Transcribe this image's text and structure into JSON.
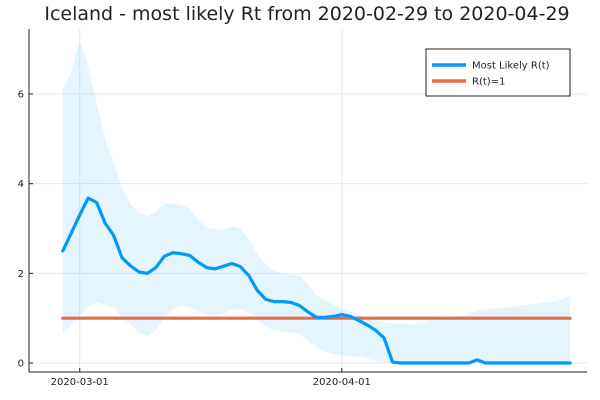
{
  "chart_data": {
    "type": "line",
    "title": "Iceland - most likely Rt from 2020-02-29 to 2020-04-29",
    "xlabel": "",
    "ylabel": "",
    "x_start": "2020-02-28",
    "x_end": "2020-04-29",
    "x_range": [
      "2020-02-24",
      "2020-04-30"
    ],
    "ylim": [
      -0.2,
      7.45
    ],
    "x_ticks": [
      {
        "date": "2020-03-01",
        "label": "2020-03-01"
      },
      {
        "date": "2020-04-01",
        "label": "2020-04-01"
      }
    ],
    "y_ticks": [
      {
        "value": 0,
        "label": "0"
      },
      {
        "value": 2,
        "label": "2"
      },
      {
        "value": 4,
        "label": "4"
      },
      {
        "value": 6,
        "label": "6"
      }
    ],
    "grid": true,
    "legend_position": "top-right",
    "series": [
      {
        "name": "Most Likely R(t)",
        "color": "#009af9",
        "values": [
          2.5,
          2.9,
          3.3,
          3.68,
          3.58,
          3.12,
          2.85,
          2.35,
          2.17,
          2.03,
          2.0,
          2.13,
          2.38,
          2.46,
          2.44,
          2.4,
          2.25,
          2.13,
          2.1,
          2.16,
          2.22,
          2.15,
          1.95,
          1.62,
          1.42,
          1.37,
          1.37,
          1.35,
          1.28,
          1.14,
          1.02,
          1.02,
          1.04,
          1.08,
          1.04,
          0.95,
          0.85,
          0.73,
          0.56,
          0.02,
          0.0,
          0.0,
          0.0,
          0.0,
          0.0,
          0.0,
          0.0,
          0.0,
          0.0,
          0.07,
          0.0,
          0.0,
          0.0,
          0.0,
          0.0,
          0.0,
          0.0,
          0.0,
          0.0,
          0.0,
          0.0
        ]
      },
      {
        "name": "R(t)=1",
        "color": "#e26f46",
        "values": [
          1,
          1,
          1,
          1,
          1,
          1,
          1,
          1,
          1,
          1,
          1,
          1,
          1,
          1,
          1,
          1,
          1,
          1,
          1,
          1,
          1,
          1,
          1,
          1,
          1,
          1,
          1,
          1,
          1,
          1,
          1,
          1,
          1,
          1,
          1,
          1,
          1,
          1,
          1,
          1,
          1,
          1,
          1,
          1,
          1,
          1,
          1,
          1,
          1,
          1,
          1,
          1,
          1,
          1,
          1,
          1,
          1,
          1,
          1,
          1,
          1
        ]
      }
    ],
    "band": {
      "color": "#009af9",
      "upper": [
        6.1,
        6.5,
        7.2,
        6.6,
        5.8,
        5.0,
        4.5,
        3.9,
        3.55,
        3.35,
        3.28,
        3.38,
        3.55,
        3.56,
        3.52,
        3.45,
        3.2,
        3.02,
        2.98,
        2.98,
        3.05,
        3.0,
        2.75,
        2.45,
        2.2,
        2.05,
        2.0,
        1.98,
        1.95,
        1.75,
        1.52,
        1.4,
        1.3,
        1.22,
        1.15,
        1.08,
        1.0,
        0.95,
        0.9,
        0.88,
        0.88,
        0.87,
        0.88,
        0.92,
        0.96,
        1.0,
        1.03,
        1.05,
        1.1,
        1.16,
        1.2,
        1.22,
        1.23,
        1.25,
        1.28,
        1.3,
        1.32,
        1.35,
        1.38,
        1.42,
        1.48
      ],
      "lower": [
        0.65,
        0.85,
        1.05,
        1.25,
        1.35,
        1.3,
        1.22,
        1.02,
        0.85,
        0.68,
        0.6,
        0.72,
        1.0,
        1.2,
        1.28,
        1.25,
        1.15,
        1.08,
        1.05,
        1.1,
        1.18,
        1.2,
        1.12,
        0.98,
        0.82,
        0.72,
        0.7,
        0.68,
        0.65,
        0.5,
        0.35,
        0.25,
        0.2,
        0.18,
        0.16,
        0.14,
        0.1,
        0.05,
        0.02,
        0.0,
        0.0,
        0.0,
        0.0,
        0.0,
        0.0,
        0.0,
        0.0,
        0.0,
        0.0,
        0.0,
        0.0,
        0.0,
        0.0,
        0.0,
        0.0,
        0.0,
        0.0,
        0.0,
        0.0,
        0.0,
        0.0
      ]
    }
  }
}
